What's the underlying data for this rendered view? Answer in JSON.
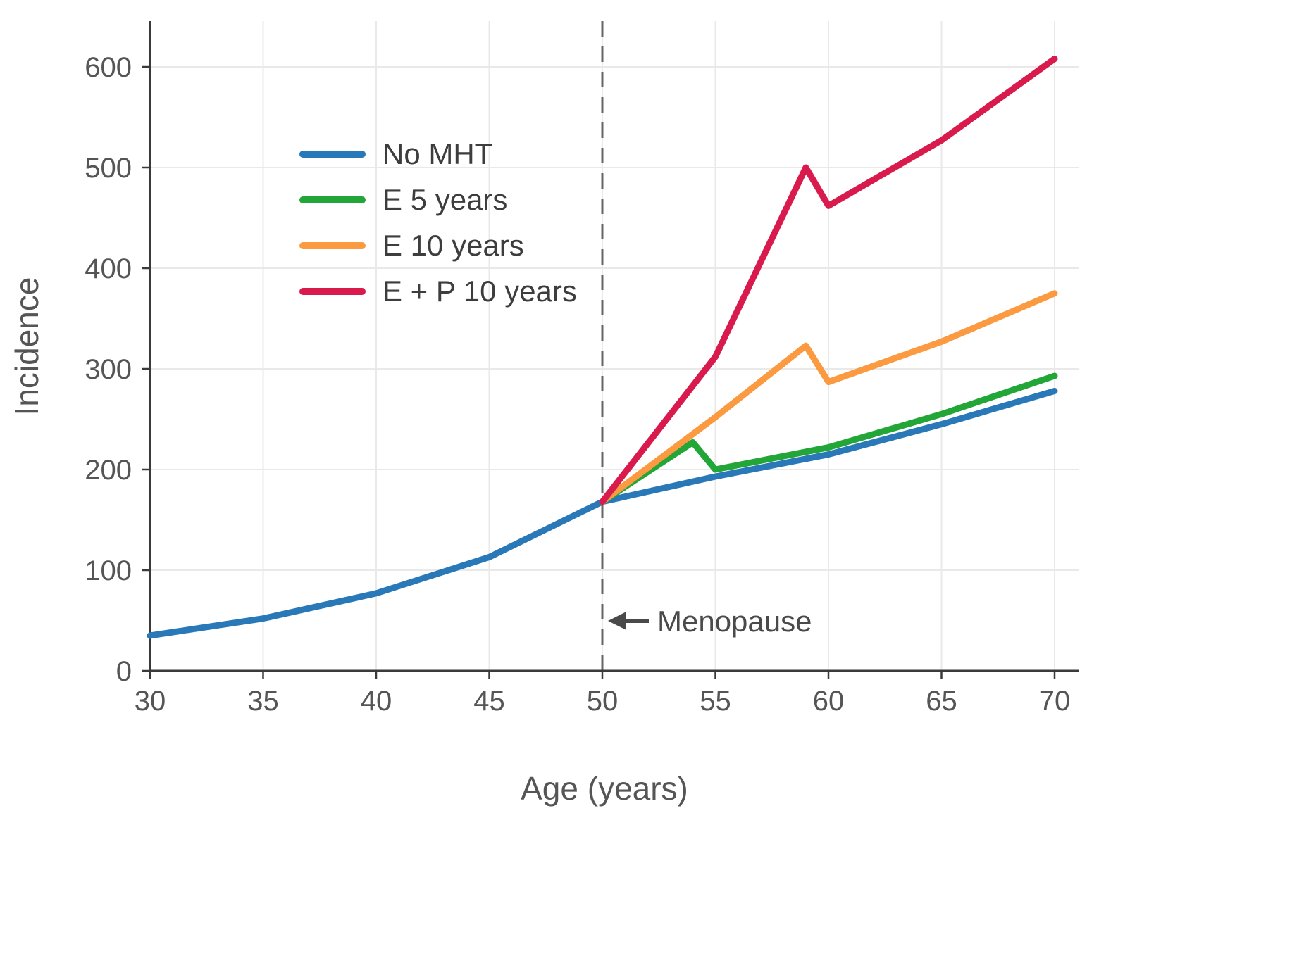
{
  "chart_data": {
    "type": "line",
    "title": "",
    "xlabel": "Age (years)",
    "ylabel": "Incidence",
    "xlim": [
      30,
      70
    ],
    "ylim": [
      0,
      650
    ],
    "xticks": [
      30,
      35,
      40,
      45,
      50,
      55,
      60,
      65,
      70
    ],
    "yticks": [
      0,
      100,
      200,
      300,
      400,
      500,
      600
    ],
    "grid": true,
    "legend_position": "upper-left",
    "annotation": {
      "text": "Menopause",
      "x": 50,
      "y": 50,
      "arrow": "left"
    },
    "series": [
      {
        "name": "No MHT",
        "color": "#2979b8",
        "x": [
          30,
          35,
          40,
          45,
          50,
          55,
          60,
          65,
          70
        ],
        "y": [
          35,
          52,
          77,
          113,
          168,
          193,
          215,
          245,
          278
        ]
      },
      {
        "name": "E 5 years",
        "color": "#22a637",
        "x": [
          50,
          54,
          55,
          60,
          65,
          70
        ],
        "y": [
          168,
          227,
          200,
          222,
          255,
          293
        ]
      },
      {
        "name": "E 10 years",
        "color": "#fb9a40",
        "x": [
          50,
          55,
          59,
          60,
          65,
          70
        ],
        "y": [
          168,
          252,
          323,
          287,
          327,
          375
        ]
      },
      {
        "name": "E + P 10 years",
        "color": "#d91a4c",
        "x": [
          50,
          55,
          59,
          60,
          65,
          70
        ],
        "y": [
          168,
          312,
          500,
          462,
          527,
          608
        ]
      }
    ]
  }
}
